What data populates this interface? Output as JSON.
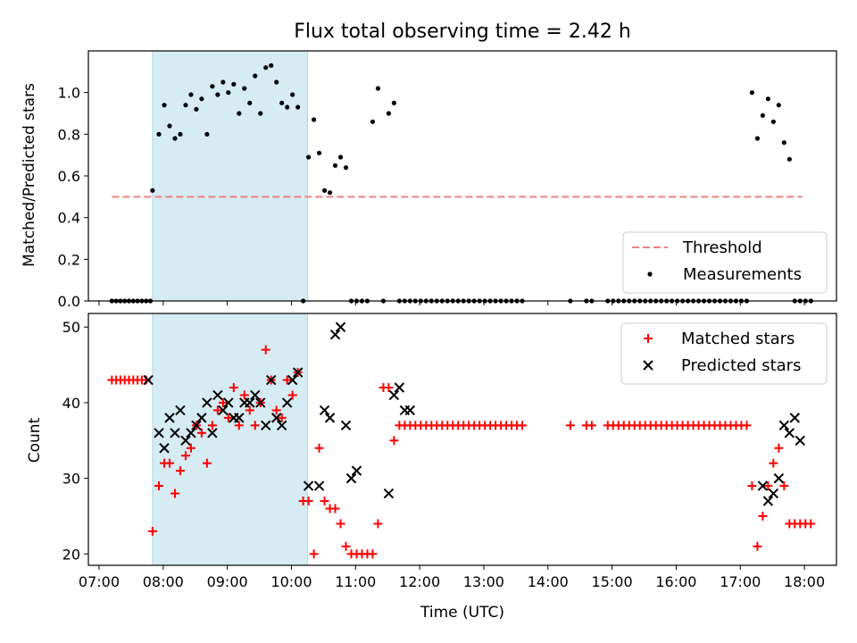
{
  "chart_data": [
    {
      "type": "scatter",
      "title": "Flux total observing time = 2.42 h",
      "ylabel": "Matched/Predicted stars",
      "xlabel": "",
      "xlim": [
        "06:50",
        "18:30"
      ],
      "ylim": [
        0,
        1.2
      ],
      "yticks": [
        0.0,
        0.2,
        0.4,
        0.6,
        0.8,
        1.0
      ],
      "ytick_labels": [
        "0.0",
        "0.2",
        "0.4",
        "0.6",
        "0.8",
        "1.0"
      ],
      "highlight_span": [
        "07:50",
        "10:15"
      ],
      "highlight_color": "#add8e6",
      "threshold": {
        "name": "Threshold",
        "value": 0.5,
        "x_range": [
          "07:12",
          "17:58"
        ],
        "color": "#f08080"
      },
      "legend_position": "lower-right",
      "series": [
        {
          "name": "Measurements",
          "color": "#000000",
          "x": [
            "07:12",
            "07:16",
            "07:20",
            "07:24",
            "07:28",
            "07:32",
            "07:36",
            "07:40",
            "07:44",
            "07:48",
            "07:50",
            "07:56",
            "08:01",
            "08:06",
            "08:11",
            "08:16",
            "08:21",
            "08:26",
            "08:31",
            "08:36",
            "08:41",
            "08:46",
            "08:51",
            "08:56",
            "09:01",
            "09:06",
            "09:11",
            "09:16",
            "09:21",
            "09:26",
            "09:31",
            "09:36",
            "09:41",
            "09:46",
            "09:51",
            "09:56",
            "10:01",
            "10:06",
            "10:11",
            "10:16",
            "10:21",
            "10:26",
            "10:31",
            "10:36",
            "10:41",
            "10:46",
            "10:51",
            "10:56",
            "11:01",
            "11:06",
            "11:11",
            "11:16",
            "11:21",
            "11:26",
            "11:31",
            "11:36",
            "11:41",
            "11:46",
            "11:51",
            "11:56",
            "12:01",
            "12:06",
            "12:11",
            "12:16",
            "12:21",
            "12:26",
            "12:31",
            "12:36",
            "12:41",
            "12:46",
            "12:51",
            "12:56",
            "13:01",
            "13:06",
            "13:11",
            "13:16",
            "13:21",
            "13:26",
            "13:31",
            "13:36",
            "14:21",
            "14:36",
            "14:41",
            "14:56",
            "15:01",
            "15:06",
            "15:11",
            "15:16",
            "15:21",
            "15:26",
            "15:31",
            "15:36",
            "15:41",
            "15:46",
            "15:51",
            "15:56",
            "16:01",
            "16:06",
            "16:11",
            "16:16",
            "16:21",
            "16:26",
            "16:31",
            "16:36",
            "16:41",
            "16:46",
            "16:51",
            "16:56",
            "17:01",
            "17:06",
            "17:11",
            "17:16",
            "17:21",
            "17:26",
            "17:31",
            "17:36",
            "17:41",
            "17:46",
            "17:51",
            "17:56",
            "18:01",
            "18:06"
          ],
          "y": [
            0,
            0,
            0,
            0,
            0,
            0,
            0,
            0,
            0,
            0,
            0.53,
            0.8,
            0.94,
            0.84,
            0.78,
            0.8,
            0.94,
            0.99,
            0.92,
            0.97,
            0.8,
            1.03,
            0.99,
            1.05,
            1.0,
            1.04,
            0.9,
            1.02,
            0.95,
            1.08,
            0.9,
            1.12,
            1.13,
            1.05,
            0.95,
            0.93,
            0.99,
            0.93,
            0,
            0.69,
            0.87,
            0.71,
            0.53,
            0.52,
            0.65,
            0.69,
            0.64,
            0,
            0,
            0,
            0,
            0.86,
            1.02,
            0,
            0.9,
            0.95,
            0,
            0,
            0,
            0,
            0,
            0,
            0,
            0,
            0,
            0,
            0,
            0,
            0,
            0,
            0,
            0,
            0,
            0,
            0,
            0,
            0,
            0,
            0,
            0,
            0,
            0,
            0,
            0,
            0,
            0,
            0,
            0,
            0,
            0,
            0,
            0,
            0,
            0,
            0,
            0,
            0,
            0,
            0,
            0,
            0,
            0,
            0,
            0,
            0,
            0,
            0,
            0,
            0,
            0,
            1.0,
            0.78,
            0.89,
            0.97,
            0.86,
            0.94,
            0.76,
            0.68,
            0,
            0,
            0,
            0
          ]
        }
      ]
    },
    {
      "type": "scatter",
      "title": "",
      "ylabel": "Count",
      "xlabel": "Time (UTC)",
      "xlim": [
        "06:50",
        "18:30"
      ],
      "ylim": [
        18.5,
        51.8
      ],
      "yticks": [
        20,
        30,
        40,
        50
      ],
      "ytick_labels": [
        "20",
        "30",
        "40",
        "50"
      ],
      "xticks": [
        "07:00",
        "08:00",
        "09:00",
        "10:00",
        "11:00",
        "12:00",
        "13:00",
        "14:00",
        "15:00",
        "16:00",
        "17:00",
        "18:00"
      ],
      "xtick_labels": [
        "07:00",
        "08:00",
        "09:00",
        "10:00",
        "11:00",
        "12:00",
        "13:00",
        "14:00",
        "15:00",
        "16:00",
        "17:00",
        "18:00"
      ],
      "highlight_span": [
        "07:50",
        "10:15"
      ],
      "highlight_color": "#add8e6",
      "legend_position": "upper-right",
      "series": [
        {
          "name": "Matched stars",
          "marker": "plus",
          "color": "#ff0000",
          "x": [
            "07:12",
            "07:16",
            "07:20",
            "07:24",
            "07:28",
            "07:32",
            "07:36",
            "07:40",
            "07:44",
            "07:50",
            "07:56",
            "08:01",
            "08:06",
            "08:11",
            "08:16",
            "08:21",
            "08:26",
            "08:31",
            "08:36",
            "08:41",
            "08:46",
            "08:51",
            "08:56",
            "09:01",
            "09:06",
            "09:11",
            "09:16",
            "09:21",
            "09:26",
            "09:31",
            "09:36",
            "09:41",
            "09:46",
            "09:51",
            "09:56",
            "10:01",
            "10:06",
            "10:11",
            "10:16",
            "10:21",
            "10:26",
            "10:31",
            "10:36",
            "10:41",
            "10:46",
            "10:51",
            "10:56",
            "11:01",
            "11:06",
            "11:11",
            "11:16",
            "11:21",
            "11:26",
            "11:31",
            "11:36",
            "11:41",
            "11:46",
            "11:51",
            "11:56",
            "12:01",
            "12:06",
            "12:11",
            "12:16",
            "12:21",
            "12:26",
            "12:31",
            "12:36",
            "12:41",
            "12:46",
            "12:51",
            "12:56",
            "13:01",
            "13:06",
            "13:11",
            "13:16",
            "13:21",
            "13:26",
            "13:31",
            "13:36",
            "14:21",
            "14:36",
            "14:41",
            "14:56",
            "15:01",
            "15:06",
            "15:11",
            "15:16",
            "15:21",
            "15:26",
            "15:31",
            "15:36",
            "15:41",
            "15:46",
            "15:51",
            "15:56",
            "16:01",
            "16:06",
            "16:11",
            "16:16",
            "16:21",
            "16:26",
            "16:31",
            "16:36",
            "16:41",
            "16:46",
            "16:51",
            "16:56",
            "17:01",
            "17:06",
            "17:11",
            "17:16",
            "17:21",
            "17:26",
            "17:31",
            "17:36",
            "17:41",
            "17:46",
            "17:51",
            "17:56",
            "18:01",
            "18:06"
          ],
          "y": [
            43,
            43,
            43,
            43,
            43,
            43,
            43,
            43,
            43,
            23,
            29,
            32,
            32,
            28,
            31,
            33,
            34,
            37,
            36,
            32,
            37,
            39,
            40,
            38,
            42,
            37,
            41,
            39,
            37,
            40,
            47,
            43,
            39,
            38,
            43,
            41,
            44,
            27,
            27,
            20,
            34,
            27,
            26,
            26,
            24,
            21,
            20,
            20,
            20,
            20,
            20,
            24,
            42,
            42,
            35,
            37,
            37,
            37,
            37,
            37,
            37,
            37,
            37,
            37,
            37,
            37,
            37,
            37,
            37,
            37,
            37,
            37,
            37,
            37,
            37,
            37,
            37,
            37,
            37,
            37,
            37,
            37,
            37,
            37,
            37,
            37,
            37,
            37,
            37,
            37,
            37,
            37,
            37,
            37,
            37,
            37,
            37,
            37,
            37,
            37,
            37,
            37,
            37,
            37,
            37,
            37,
            37,
            37,
            37,
            29,
            21,
            25,
            29,
            32,
            34,
            29,
            24,
            24,
            24,
            24,
            24
          ]
        },
        {
          "name": "Predicted stars",
          "marker": "x",
          "color": "#000000",
          "x": [
            "07:46",
            "07:56",
            "08:01",
            "08:06",
            "08:11",
            "08:16",
            "08:21",
            "08:26",
            "08:31",
            "08:36",
            "08:41",
            "08:46",
            "08:51",
            "08:56",
            "09:01",
            "09:06",
            "09:11",
            "09:16",
            "09:21",
            "09:26",
            "09:31",
            "09:36",
            "09:41",
            "09:46",
            "09:51",
            "09:56",
            "10:01",
            "10:06",
            "10:16",
            "10:26",
            "10:31",
            "10:36",
            "10:41",
            "10:46",
            "10:51",
            "10:56",
            "11:01",
            "11:31",
            "11:36",
            "11:41",
            "11:46",
            "11:51",
            "17:21",
            "17:26",
            "17:31",
            "17:36",
            "17:41",
            "17:46",
            "17:51",
            "17:56"
          ],
          "y": [
            43,
            36,
            34,
            38,
            36,
            39,
            35,
            36,
            37,
            38,
            40,
            36,
            41,
            39,
            40,
            38,
            38,
            40,
            40,
            41,
            40,
            37,
            43,
            38,
            37,
            40,
            43,
            44,
            29,
            29,
            39,
            38,
            49,
            50,
            37,
            30,
            31,
            28,
            41,
            42,
            39,
            39,
            29,
            27,
            28,
            30,
            37,
            36,
            38,
            35
          ]
        }
      ]
    }
  ]
}
